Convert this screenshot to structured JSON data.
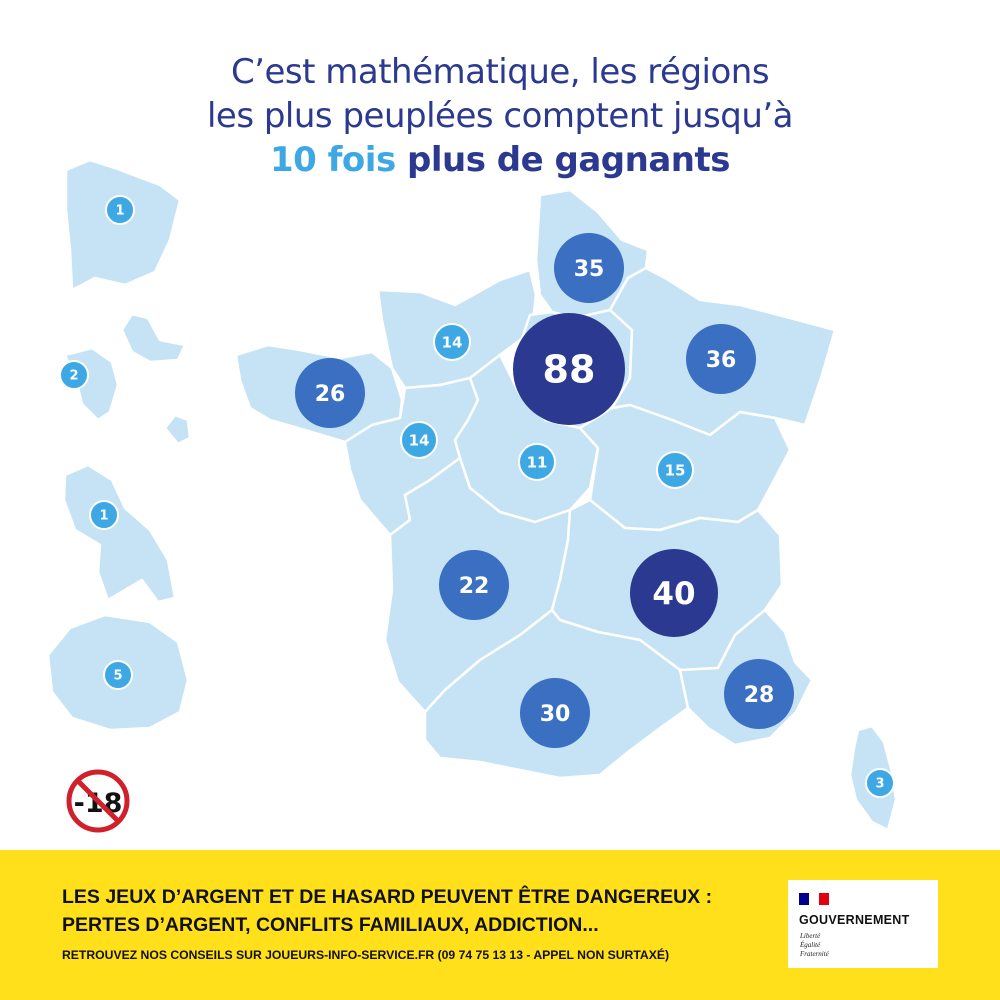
{
  "headline": {
    "line1": "C’est mathématique, les régions",
    "line2": "les plus peuplées comptent jusqu’à",
    "line3_accent": "10 fois",
    "line3_rest": " plus de gagnants"
  },
  "regions": [
    {
      "name": "Hauts-de-France",
      "winners": 35
    },
    {
      "name": "Île-de-France",
      "winners": 88
    },
    {
      "name": "Grand Est",
      "winners": 36
    },
    {
      "name": "Normandie",
      "winners": 14
    },
    {
      "name": "Bretagne",
      "winners": 26
    },
    {
      "name": "Pays de la Loire",
      "winners": 14
    },
    {
      "name": "Centre-Val de Loire",
      "winners": 11
    },
    {
      "name": "Bourgogne-Franche-Comté",
      "winners": 15
    },
    {
      "name": "Nouvelle-Aquitaine",
      "winners": 22
    },
    {
      "name": "Auvergne-Rhône-Alpes",
      "winners": 40
    },
    {
      "name": "Occitanie",
      "winners": 30
    },
    {
      "name": "Provence-Alpes-Côte d'Azur",
      "winners": 28
    },
    {
      "name": "Corse",
      "winners": 3
    },
    {
      "name": "Guyane",
      "winners": 1
    },
    {
      "name": "Guadeloupe",
      "winners": 2
    },
    {
      "name": "Martinique",
      "winners": 1
    },
    {
      "name": "La Réunion",
      "winners": 5
    }
  ],
  "colors": {
    "land": "#c5e3f5",
    "border": "#ffffff",
    "bubble_small": "#3ea8e5",
    "bubble_medium": "#3a6fc2",
    "bubble_large": "#2b3990",
    "footer": "#ffe01a"
  },
  "age_badge": "-18",
  "footer": {
    "warning_line1": "LES JEUX D’ARGENT ET DE HASARD PEUVENT ÊTRE DANGEREUX :",
    "warning_line2": "PERTES D’ARGENT, CONFLITS FAMILIAUX, ADDICTION...",
    "advice": "RETROUVEZ NOS CONSEILS SUR JOUEURS-INFO-SERVICE.FR (09 74 75 13 13 - APPEL NON SURTAXÉ)"
  },
  "gov_logo": {
    "name": "GOUVERNEMENT",
    "motto": [
      "Liberté",
      "Égalité",
      "Fraternité"
    ]
  }
}
